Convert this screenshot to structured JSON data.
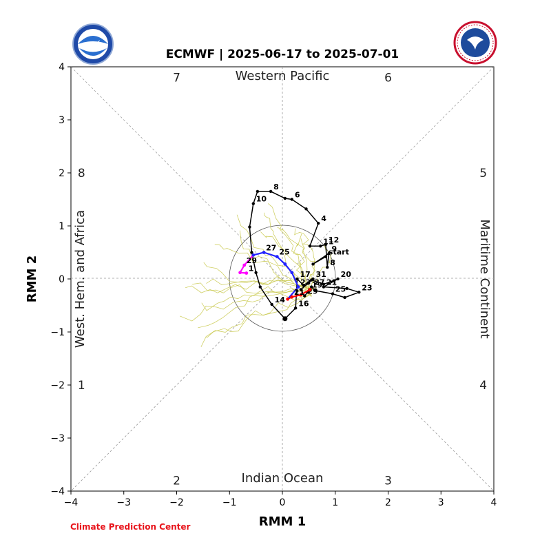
{
  "header": {
    "title": "ECMWF | 2025-06-17 to 2025-07-01",
    "credit": "Climate Prediction Center",
    "credit_color": "#e8141b",
    "logo_left": "noaa-logo",
    "logo_right": "nws-logo"
  },
  "colors": {
    "observed": "#000000",
    "forecast_mean_early": "#ff0000",
    "forecast_mean_mid": "#2222ff",
    "forecast_mean_late": "#ff00ff",
    "ensemble": "#c8c84a",
    "grid": "#999999"
  },
  "chart_data": {
    "type": "line",
    "title": "ECMWF | 2025-06-17 to 2025-07-01",
    "xlabel": "RMM 1",
    "ylabel": "RMM 2",
    "xlim": [
      -4,
      4
    ],
    "ylim": [
      -4,
      4
    ],
    "xticks": [
      "−4",
      "−3",
      "−2",
      "−1",
      "0",
      "1",
      "2",
      "3",
      "4"
    ],
    "yticks": [
      "−4",
      "−3",
      "−2",
      "−1",
      "0",
      "1",
      "2",
      "3",
      "4"
    ],
    "phase_numbers": [
      {
        "label": "1",
        "x": -3.8,
        "y": -2.0
      },
      {
        "label": "2",
        "x": -2.0,
        "y": -3.8
      },
      {
        "label": "3",
        "x": 2.0,
        "y": -3.8
      },
      {
        "label": "4",
        "x": 3.8,
        "y": -2.0
      },
      {
        "label": "5",
        "x": 3.8,
        "y": 2.0
      },
      {
        "label": "6",
        "x": 2.0,
        "y": 3.8
      },
      {
        "label": "7",
        "x": -2.0,
        "y": 3.8
      },
      {
        "label": "8",
        "x": -3.8,
        "y": 2.0
      }
    ],
    "regions": {
      "top": "Western Pacific",
      "bottom": "Indian Ocean",
      "left": "West. Hem. and Africa",
      "right": "Maritime Continent"
    },
    "unit_circle_radius": 1,
    "grid": true,
    "observed": {
      "name": "",
      "points": [
        {
          "x": 0.82,
          "y": 0.42,
          "label": "start"
        },
        {
          "x": 0.58,
          "y": 0.28
        },
        {
          "x": 0.88,
          "y": 0.48,
          "label": "9"
        },
        {
          "x": 0.85,
          "y": 0.22,
          "label": "8"
        },
        {
          "x": 0.82,
          "y": 0.65,
          "label": "12"
        },
        {
          "x": 0.72,
          "y": 0.62,
          "label": "11"
        },
        {
          "x": 0.52,
          "y": 0.62
        },
        {
          "x": 0.68,
          "y": 1.05,
          "label": "4"
        },
        {
          "x": 0.45,
          "y": 1.32
        },
        {
          "x": 0.18,
          "y": 1.5,
          "label": "6"
        },
        {
          "x": 0.05,
          "y": 1.52
        },
        {
          "x": -0.22,
          "y": 1.65,
          "label": "8"
        },
        {
          "x": -0.47,
          "y": 1.65
        },
        {
          "x": -0.55,
          "y": 1.42,
          "label": "10"
        },
        {
          "x": -0.62,
          "y": 0.98
        },
        {
          "x": -0.58,
          "y": 0.5
        },
        {
          "x": -0.5,
          "y": 0.12
        },
        {
          "x": -0.42,
          "y": -0.15
        },
        {
          "x": -0.2,
          "y": -0.48,
          "label": "14"
        },
        {
          "x": 0.05,
          "y": -0.75
        },
        {
          "x": 0.25,
          "y": -0.55,
          "label": "16"
        },
        {
          "x": 0.28,
          "y": 0.0,
          "label": "17"
        },
        {
          "x": 0.4,
          "y": -0.12
        },
        {
          "x": 0.55,
          "y": -0.02
        },
        {
          "x": 0.78,
          "y": -0.1
        },
        {
          "x": 1.05,
          "y": 0.0,
          "label": "20"
        },
        {
          "x": 0.78,
          "y": -0.15,
          "label": "21"
        },
        {
          "x": 1.22,
          "y": -0.18
        },
        {
          "x": 1.45,
          "y": -0.25,
          "label": "23"
        },
        {
          "x": 1.18,
          "y": -0.35
        },
        {
          "x": 0.95,
          "y": -0.28,
          "label": "25"
        },
        {
          "x": 0.62,
          "y": -0.22
        },
        {
          "x": 0.55,
          "y": -0.15,
          "label": "27"
        },
        {
          "x": 0.48,
          "y": -0.25
        },
        {
          "x": 0.42,
          "y": -0.32,
          "label": "29"
        },
        {
          "x": 0.35,
          "y": -0.2
        },
        {
          "x": 0.58,
          "y": 0.0,
          "label": "31"
        }
      ]
    },
    "forecast_mean": [
      {
        "x": 0.52,
        "y": -0.2,
        "label": "19",
        "seg": "early"
      },
      {
        "x": 0.35,
        "y": -0.3,
        "seg": "early"
      },
      {
        "x": 0.18,
        "y": -0.34,
        "label": "21",
        "seg": "early"
      },
      {
        "x": 0.1,
        "y": -0.38,
        "seg": "early"
      },
      {
        "x": 0.3,
        "y": -0.15,
        "label": "23",
        "seg": "mid"
      },
      {
        "x": 0.18,
        "y": 0.12,
        "seg": "mid"
      },
      {
        "x": 0.05,
        "y": 0.28,
        "seg": "mid"
      },
      {
        "x": -0.1,
        "y": 0.42,
        "label": "25",
        "seg": "mid"
      },
      {
        "x": -0.35,
        "y": 0.5,
        "label": "27",
        "seg": "mid"
      },
      {
        "x": -0.55,
        "y": 0.45,
        "seg": "mid"
      },
      {
        "x": -0.72,
        "y": 0.26,
        "label": "29",
        "seg": "late"
      },
      {
        "x": -0.8,
        "y": 0.12,
        "seg": "late"
      },
      {
        "x": -0.68,
        "y": 0.11,
        "label": "1",
        "seg": "late"
      }
    ],
    "ensemble_members": 20
  }
}
